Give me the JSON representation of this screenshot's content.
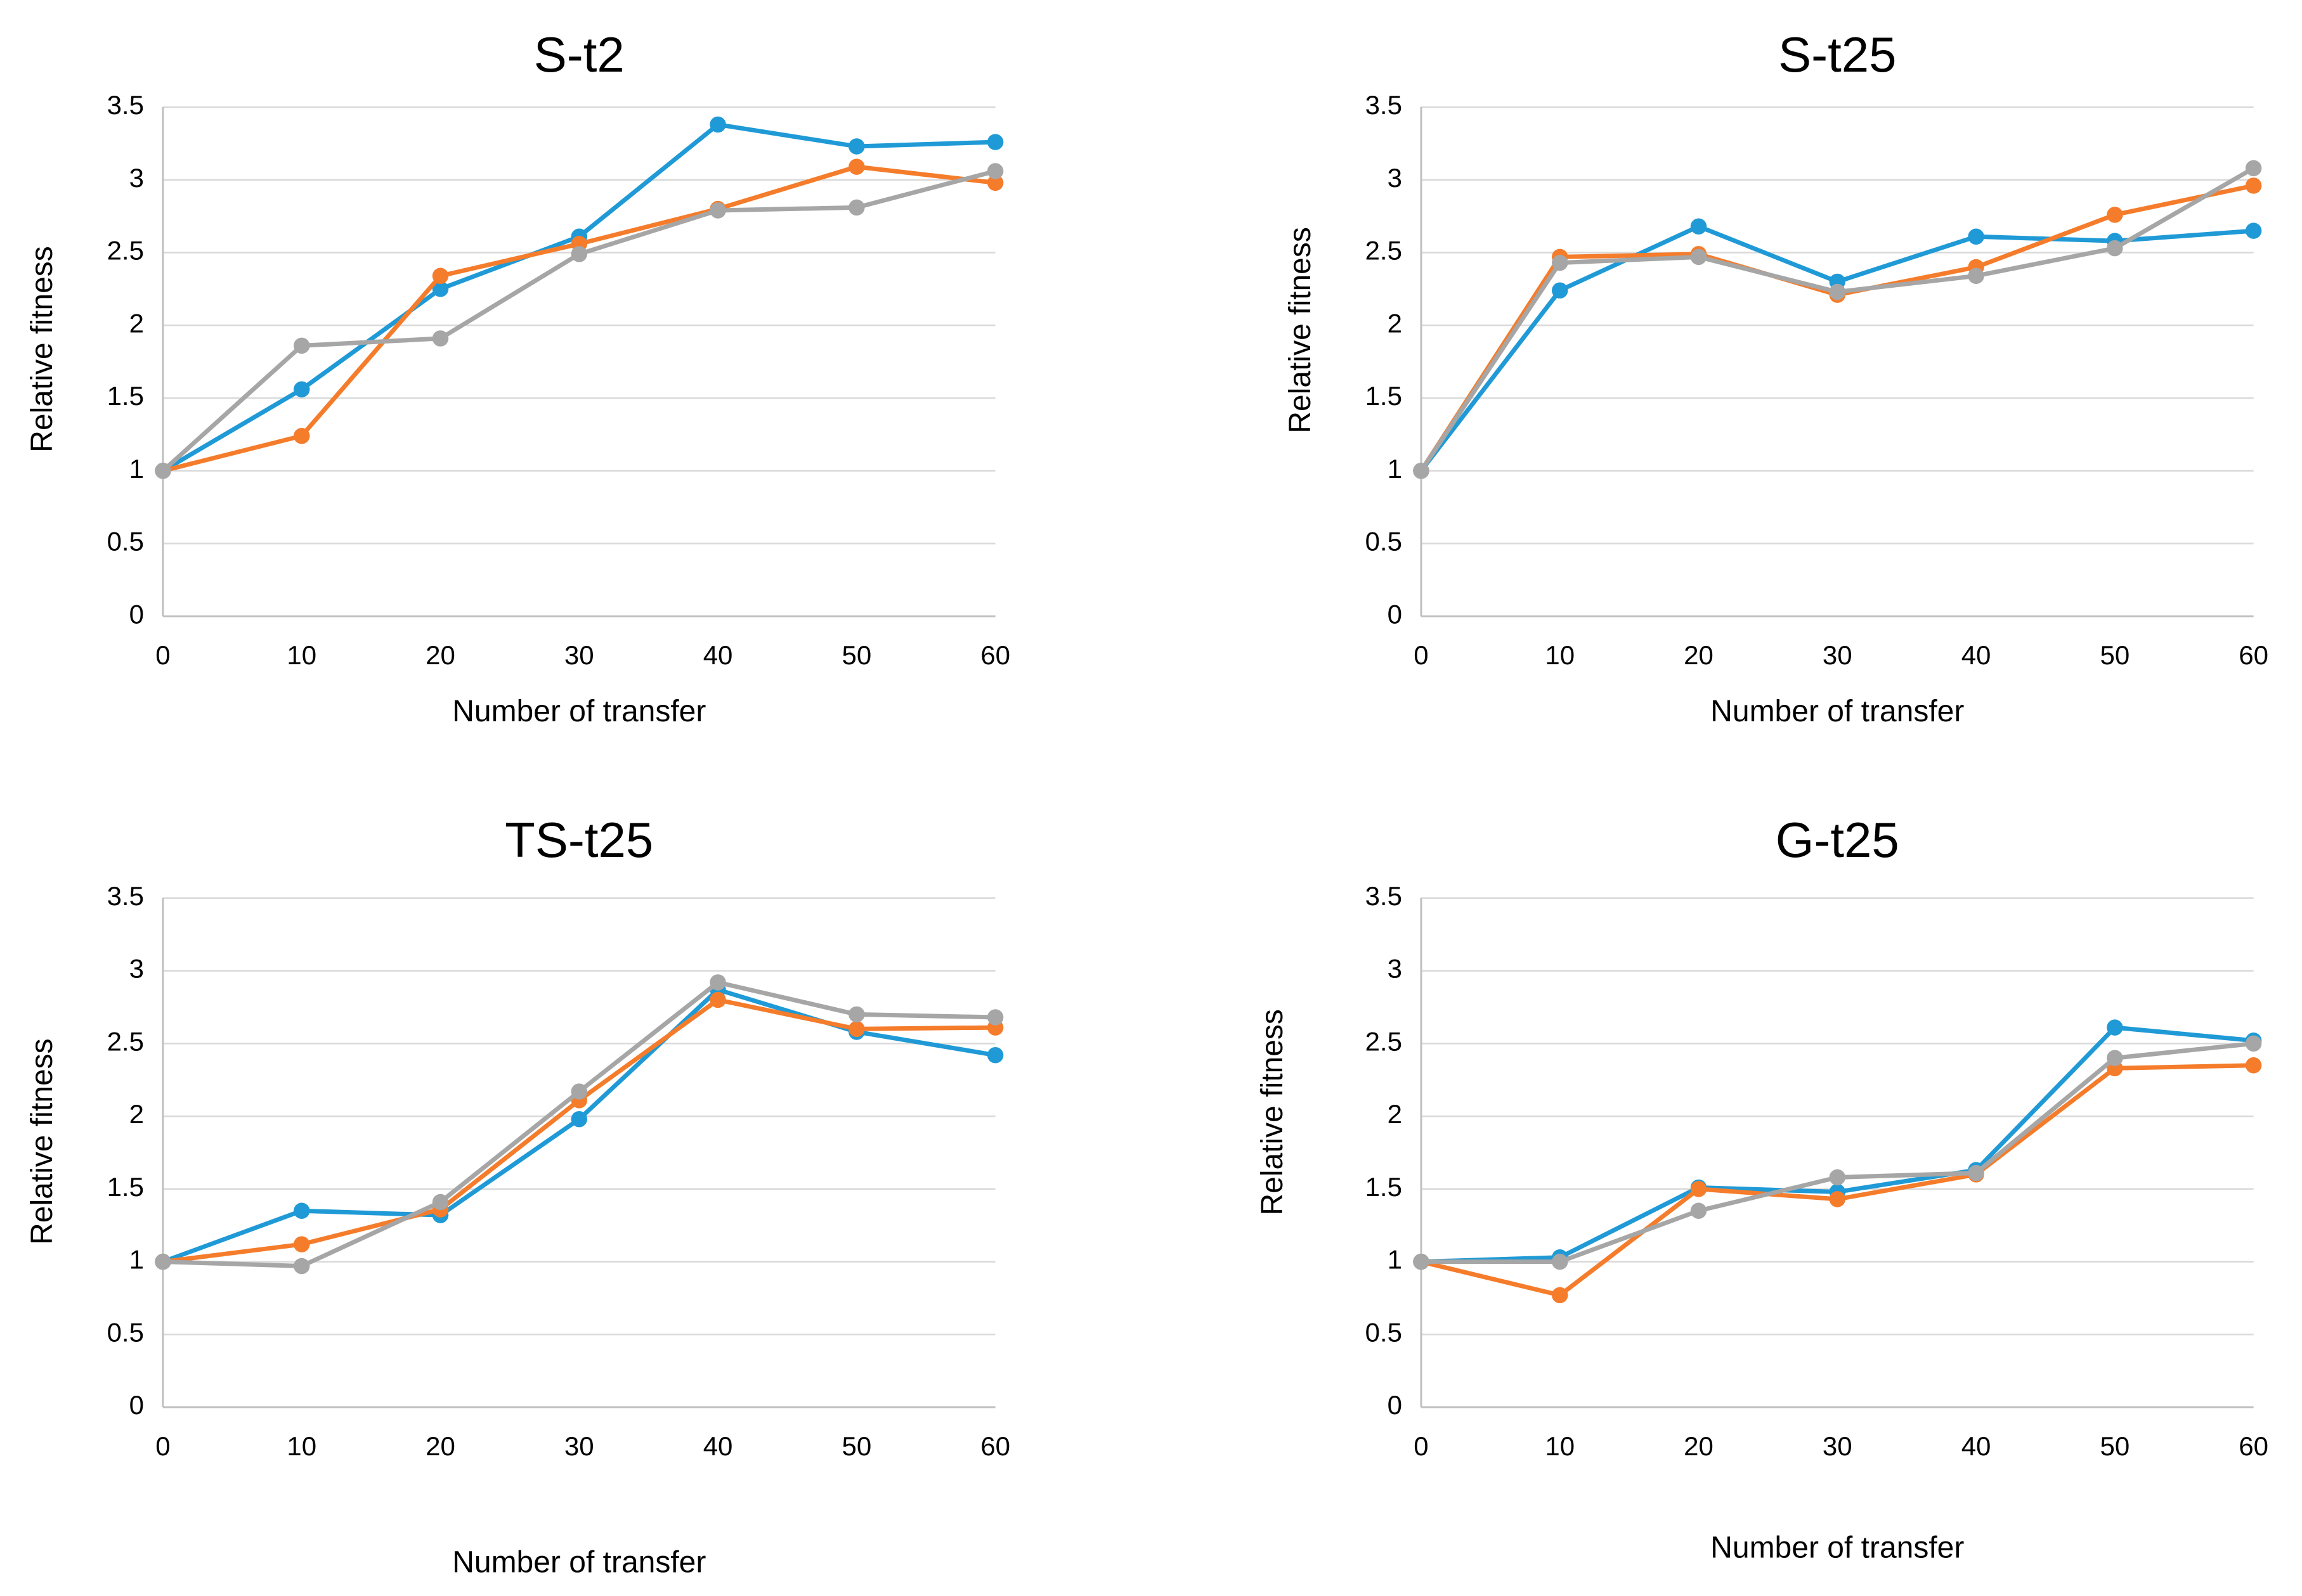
{
  "chart_data": [
    {
      "type": "line",
      "title": "S-t2",
      "xlabel": "Number  of transfer",
      "ylabel": "Relative fitness",
      "x": [
        0,
        10,
        20,
        30,
        40,
        50,
        60
      ],
      "xticks": [
        "0",
        "10",
        "20",
        "30",
        "40",
        "50",
        "60"
      ],
      "yticks": [
        "0",
        "0.5",
        "1",
        "1.5",
        "2",
        "2.5",
        "3",
        "3.5"
      ],
      "ylim": [
        0,
        3.5
      ],
      "grid": true,
      "series": [
        {
          "name": "blue",
          "color": "#1f9ad6",
          "values": [
            1.0,
            1.56,
            2.25,
            2.61,
            3.38,
            3.23,
            3.26
          ]
        },
        {
          "name": "orange",
          "color": "#f57c2b",
          "values": [
            1.0,
            1.24,
            2.34,
            2.56,
            2.8,
            3.09,
            2.98
          ]
        },
        {
          "name": "gray",
          "color": "#a6a6a6",
          "values": [
            1.0,
            1.86,
            1.91,
            2.49,
            2.79,
            2.81,
            3.06
          ]
        }
      ]
    },
    {
      "type": "line",
      "title": "S-t25",
      "xlabel": "Number  of transfer",
      "ylabel": "Relative fitness",
      "x": [
        0,
        10,
        20,
        30,
        40,
        50,
        60
      ],
      "xticks": [
        "0",
        "10",
        "20",
        "30",
        "40",
        "50",
        "60"
      ],
      "yticks": [
        "0",
        "0.5",
        "1",
        "1.5",
        "2",
        "2.5",
        "3",
        "3.5"
      ],
      "ylim": [
        0,
        3.5
      ],
      "grid": true,
      "series": [
        {
          "name": "blue",
          "color": "#1f9ad6",
          "values": [
            1.0,
            2.24,
            2.68,
            2.3,
            2.61,
            2.58,
            2.65
          ]
        },
        {
          "name": "orange",
          "color": "#f57c2b",
          "values": [
            1.0,
            2.47,
            2.49,
            2.21,
            2.4,
            2.76,
            2.96
          ]
        },
        {
          "name": "gray",
          "color": "#a6a6a6",
          "values": [
            1.0,
            2.43,
            2.47,
            2.23,
            2.34,
            2.53,
            3.08
          ]
        }
      ]
    },
    {
      "type": "line",
      "title": "TS-t25",
      "xlabel": "Number  of transfer",
      "ylabel": "Relative fitness",
      "x": [
        0,
        10,
        20,
        30,
        40,
        50,
        60
      ],
      "xticks": [
        "0",
        "10",
        "20",
        "30",
        "40",
        "50",
        "60"
      ],
      "yticks": [
        "0",
        "0.5",
        "1",
        "1.5",
        "2",
        "2.5",
        "3",
        "3.5"
      ],
      "ylim": [
        0,
        3.5
      ],
      "grid": true,
      "series": [
        {
          "name": "blue",
          "color": "#1f9ad6",
          "values": [
            1.0,
            1.35,
            1.32,
            1.98,
            2.87,
            2.58,
            2.42
          ]
        },
        {
          "name": "orange",
          "color": "#f57c2b",
          "values": [
            1.0,
            1.12,
            1.36,
            2.11,
            2.8,
            2.6,
            2.61
          ]
        },
        {
          "name": "gray",
          "color": "#a6a6a6",
          "values": [
            1.0,
            0.97,
            1.41,
            2.17,
            2.92,
            2.7,
            2.68
          ]
        }
      ]
    },
    {
      "type": "line",
      "title": "G-t25",
      "xlabel": "Number  of transfer",
      "ylabel": "Relative fitness",
      "x": [
        0,
        10,
        20,
        30,
        40,
        50,
        60
      ],
      "xticks": [
        "0",
        "10",
        "20",
        "30",
        "40",
        "50",
        "60"
      ],
      "yticks": [
        "0",
        "0.5",
        "1",
        "1.5",
        "2",
        "2.5",
        "3",
        "3.5"
      ],
      "ylim": [
        0,
        3.5
      ],
      "grid": true,
      "series": [
        {
          "name": "blue",
          "color": "#1f9ad6",
          "values": [
            1.0,
            1.03,
            1.51,
            1.48,
            1.63,
            2.61,
            2.52
          ]
        },
        {
          "name": "orange",
          "color": "#f57c2b",
          "values": [
            1.0,
            0.77,
            1.5,
            1.43,
            1.6,
            2.33,
            2.35
          ]
        },
        {
          "name": "gray",
          "color": "#a6a6a6",
          "values": [
            1.0,
            1.0,
            1.35,
            1.58,
            1.61,
            2.4,
            2.5
          ]
        }
      ]
    }
  ]
}
